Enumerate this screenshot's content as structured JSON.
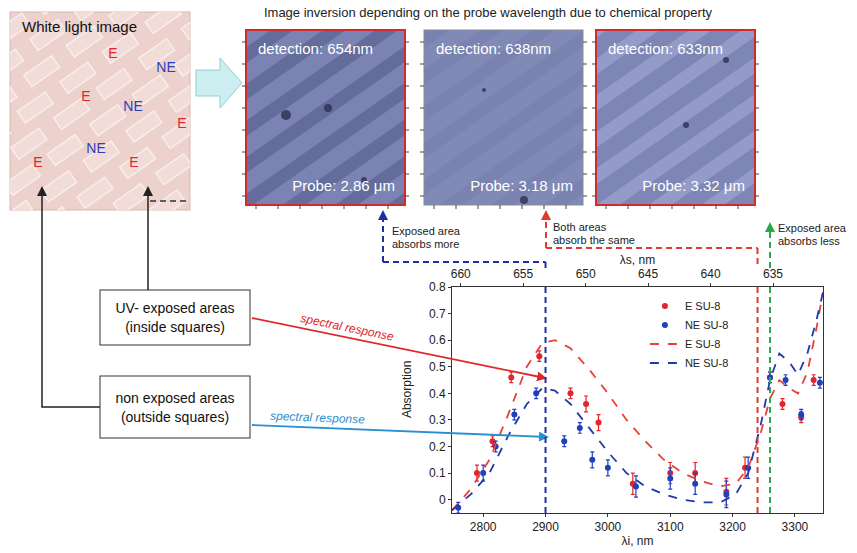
{
  "title": "Image inversion depending on the probe wavelength due to chemical property",
  "white_light_image": {
    "title": "White light image",
    "labels": [
      {
        "text": "E",
        "color": "#e0262a"
      },
      {
        "text": "NE",
        "color": "#2b3fbf"
      },
      {
        "text": "E",
        "color": "#e0262a"
      },
      {
        "text": "NE",
        "color": "#2b3fbf"
      },
      {
        "text": "E",
        "color": "#e0262a"
      },
      {
        "text": "NE",
        "color": "#2b3fbf"
      },
      {
        "text": "E",
        "color": "#e0262a"
      },
      {
        "text": "E",
        "color": "#e0262a"
      }
    ]
  },
  "panels": [
    {
      "detection": "detection: 654nm",
      "probe": "Probe: 2.86 μm",
      "border_color": "#d32a2a"
    },
    {
      "detection": "detection: 638nm",
      "probe": "Probe: 3.18 μm",
      "border_color": null
    },
    {
      "detection": "detection: 633nm",
      "probe": "Probe: 3.32 μm",
      "border_color": "#d32a2a"
    }
  ],
  "callouts": [
    {
      "lines": [
        "Exposed area",
        "absorbs more"
      ]
    },
    {
      "lines": [
        "Both areas",
        "absorb the same"
      ]
    },
    {
      "lines": [
        "Exposed area",
        "absorbs less"
      ]
    }
  ],
  "boxes": [
    {
      "lines": [
        "UV- exposed areas",
        "(inside squares)"
      ],
      "arrow_text": "spectral response",
      "arrow_color": "#e0262a"
    },
    {
      "lines": [
        "non exposed areas",
        "(outside squares)"
      ],
      "arrow_text": "spectral response",
      "arrow_color": "#2a8fd0"
    }
  ],
  "chart_data": {
    "type": "scatter",
    "xlabel": "λi, nm",
    "x2label": "λs, nm",
    "ylabel": "Absorption",
    "xlim": [
      2750,
      3345
    ],
    "xticks": [
      2800,
      2900,
      3000,
      3100,
      3200,
      3300
    ],
    "x2lim": [
      660.7,
      631
    ],
    "x2ticks": [
      660,
      655,
      650,
      645,
      640,
      635
    ],
    "ylim": [
      -0.05,
      0.8
    ],
    "yticks": [
      0,
      0.1,
      0.2,
      0.3,
      0.4,
      0.5,
      0.6,
      0.7,
      0.8
    ],
    "grid": false,
    "legend": "top",
    "series": [
      {
        "name": "E SU-8",
        "type": "scatter",
        "marker": "circle",
        "color": "#e0262a",
        "x": [
          2790,
          2815,
          2845,
          2890,
          2940,
          2965,
          2985,
          3040,
          3100,
          3140,
          3190,
          3220,
          3260,
          3280,
          3310,
          3330
        ],
        "values": [
          0.1,
          0.22,
          0.46,
          0.54,
          0.4,
          0.36,
          0.29,
          0.06,
          0.1,
          0.1,
          0.03,
          0.12,
          0.46,
          0.36,
          0.31,
          0.45
        ],
        "errors": [
          0.03,
          0.02,
          0.02,
          0.02,
          0.02,
          0.03,
          0.03,
          0.04,
          0.04,
          0.04,
          0.05,
          0.04,
          0.02,
          0.02,
          0.02,
          0.02
        ]
      },
      {
        "name": "NE SU-8",
        "type": "scatter",
        "marker": "circle",
        "color": "#2040c0",
        "x": [
          2760,
          2800,
          2820,
          2850,
          2885,
          2930,
          2955,
          2975,
          3000,
          3045,
          3100,
          3140,
          3190,
          3225,
          3260,
          3285,
          3310,
          3340
        ],
        "values": [
          -0.03,
          0.1,
          0.2,
          0.32,
          0.4,
          0.22,
          0.27,
          0.15,
          0.12,
          0.05,
          0.08,
          0.06,
          0.02,
          0.12,
          0.46,
          0.45,
          0.32,
          0.44
        ],
        "errors": [
          0.02,
          0.03,
          0.02,
          0.02,
          0.02,
          0.02,
          0.02,
          0.03,
          0.03,
          0.04,
          0.04,
          0.04,
          0.05,
          0.04,
          0.02,
          0.02,
          0.02,
          0.02
        ]
      },
      {
        "name": "E SU-8",
        "type": "line",
        "line_style": "dashed",
        "color": "#e8413a",
        "x": [
          2750,
          2780,
          2810,
          2840,
          2870,
          2895,
          2915,
          2940,
          2970,
          3000,
          3030,
          3060,
          3090,
          3120,
          3150,
          3180,
          3205,
          3225,
          3245,
          3260,
          3275,
          3290,
          3305,
          3320,
          3335,
          3345
        ],
        "values": [
          -0.04,
          0.04,
          0.15,
          0.32,
          0.5,
          0.59,
          0.6,
          0.57,
          0.49,
          0.4,
          0.3,
          0.22,
          0.15,
          0.1,
          0.07,
          0.05,
          0.06,
          0.12,
          0.25,
          0.38,
          0.45,
          0.42,
          0.4,
          0.48,
          0.65,
          0.78
        ]
      },
      {
        "name": "NE SU-8",
        "type": "line",
        "line_style": "dashed",
        "color": "#1f3aa8",
        "x": [
          2750,
          2780,
          2810,
          2840,
          2870,
          2895,
          2915,
          2940,
          2970,
          3000,
          3030,
          3060,
          3090,
          3120,
          3150,
          3180,
          3205,
          3225,
          3245,
          3260,
          3275,
          3290,
          3305,
          3320,
          3335,
          3345
        ],
        "values": [
          -0.04,
          0.02,
          0.1,
          0.24,
          0.36,
          0.42,
          0.41,
          0.36,
          0.27,
          0.18,
          0.1,
          0.05,
          0.02,
          0.0,
          -0.01,
          -0.01,
          0.02,
          0.1,
          0.28,
          0.45,
          0.55,
          0.52,
          0.47,
          0.55,
          0.68,
          0.78
        ]
      }
    ],
    "vlines": [
      {
        "x": 2900,
        "color": "#1f2f9f"
      },
      {
        "x": 3240,
        "color": "#e03a2e"
      },
      {
        "x": 3260,
        "color": "#2aa84a"
      }
    ]
  }
}
